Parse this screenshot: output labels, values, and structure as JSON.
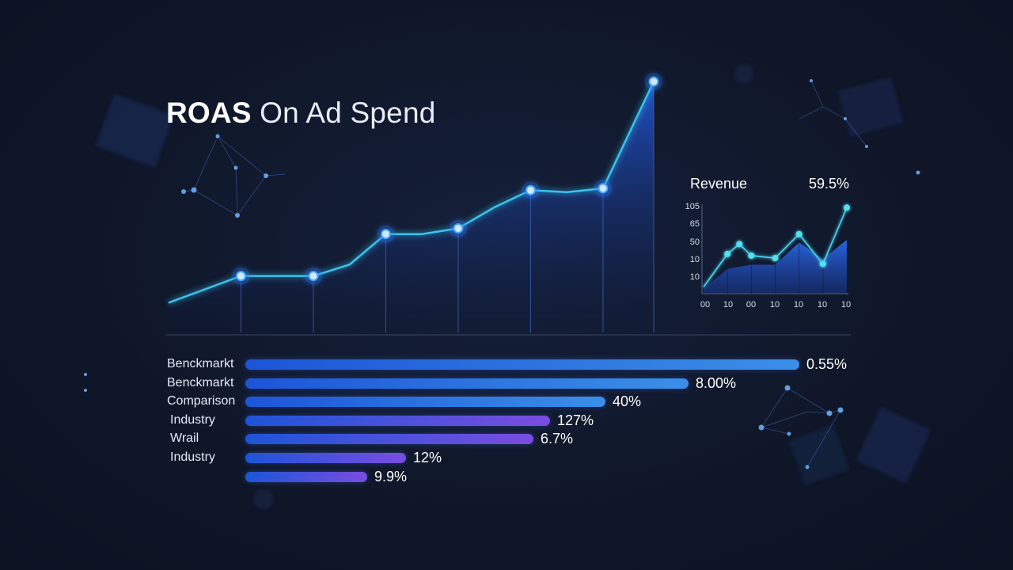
{
  "title": {
    "strong": "ROAS",
    "rest": " On Ad Spend"
  },
  "colors": {
    "background": "#0f1628",
    "line": "#38c4ee",
    "point": "#9ed8ff",
    "area_top": "#1e4fc8",
    "bar_start": "#1c55d8",
    "bar_end_blue": "#3b8fe8",
    "bar_end_violet": "#7a4ce0"
  },
  "chart_data": [
    {
      "type": "area",
      "title": "ROAS On Ad Spend",
      "points": [
        {
          "x": 0,
          "y": 4
        },
        {
          "x": 1,
          "y": 18
        },
        {
          "x": 2,
          "y": 18
        },
        {
          "x": 2.5,
          "y": 24
        },
        {
          "x": 3,
          "y": 40
        },
        {
          "x": 3.5,
          "y": 40
        },
        {
          "x": 4,
          "y": 43
        },
        {
          "x": 4.5,
          "y": 54
        },
        {
          "x": 5,
          "y": 63
        },
        {
          "x": 5.5,
          "y": 62
        },
        {
          "x": 6,
          "y": 64
        },
        {
          "x": 6.7,
          "y": 120
        }
      ],
      "marked_points": [
        {
          "x": 1,
          "y": 18
        },
        {
          "x": 2,
          "y": 18
        },
        {
          "x": 3,
          "y": 40
        },
        {
          "x": 4,
          "y": 43
        },
        {
          "x": 5,
          "y": 63
        },
        {
          "x": 6,
          "y": 64
        },
        {
          "x": 6.7,
          "y": 120
        }
      ],
      "xlim": [
        0,
        6.7
      ],
      "ylim": [
        0,
        120
      ],
      "grid": false,
      "legend": "none"
    },
    {
      "type": "area",
      "title": "Revenue",
      "headline_value": "59.5%",
      "y_tick_labels": [
        "105",
        "65",
        "50",
        "10",
        "10"
      ],
      "x_tick_labels": [
        "00",
        "10",
        "00",
        "10",
        "10",
        "10",
        "10"
      ],
      "line_points": [
        {
          "x": 0,
          "y": 8
        },
        {
          "x": 1,
          "y": 48
        },
        {
          "x": 1.5,
          "y": 60
        },
        {
          "x": 2,
          "y": 46
        },
        {
          "x": 3,
          "y": 43
        },
        {
          "x": 4,
          "y": 72
        },
        {
          "x": 5,
          "y": 36
        },
        {
          "x": 6,
          "y": 104
        }
      ],
      "area_points": [
        {
          "x": 0,
          "y": 6
        },
        {
          "x": 1,
          "y": 30
        },
        {
          "x": 2,
          "y": 35
        },
        {
          "x": 3,
          "y": 35
        },
        {
          "x": 4,
          "y": 62
        },
        {
          "x": 5,
          "y": 42
        },
        {
          "x": 6,
          "y": 65
        }
      ],
      "ylim": [
        0,
        110
      ],
      "xlim": [
        0,
        6
      ],
      "grid": false,
      "legend": "none"
    },
    {
      "type": "bar",
      "orientation": "horizontal",
      "rows": [
        {
          "label": "Benckmarkt",
          "value_label": "0.55%",
          "fill": 1.0,
          "end_color": "bar_end_blue"
        },
        {
          "label": "Benckmarkt",
          "value_label": "8.00%",
          "fill": 0.8,
          "end_color": "bar_end_blue"
        },
        {
          "label": "Comparison",
          "value_label": "40%",
          "fill": 0.65,
          "end_color": "bar_end_blue"
        },
        {
          "label": "Industry",
          "value_label": "127%",
          "fill": 0.55,
          "end_color": "bar_end_violet"
        },
        {
          "label": "Wrail",
          "value_label": "6.7%",
          "fill": 0.52,
          "end_color": "bar_end_violet"
        },
        {
          "label": "Industry",
          "value_label": "12%",
          "fill": 0.29,
          "end_color": "bar_end_violet"
        },
        {
          "label": "",
          "value_label": "9.9%",
          "fill": 0.22,
          "end_color": "bar_end_violet"
        }
      ],
      "grid": false,
      "legend": "none"
    }
  ]
}
